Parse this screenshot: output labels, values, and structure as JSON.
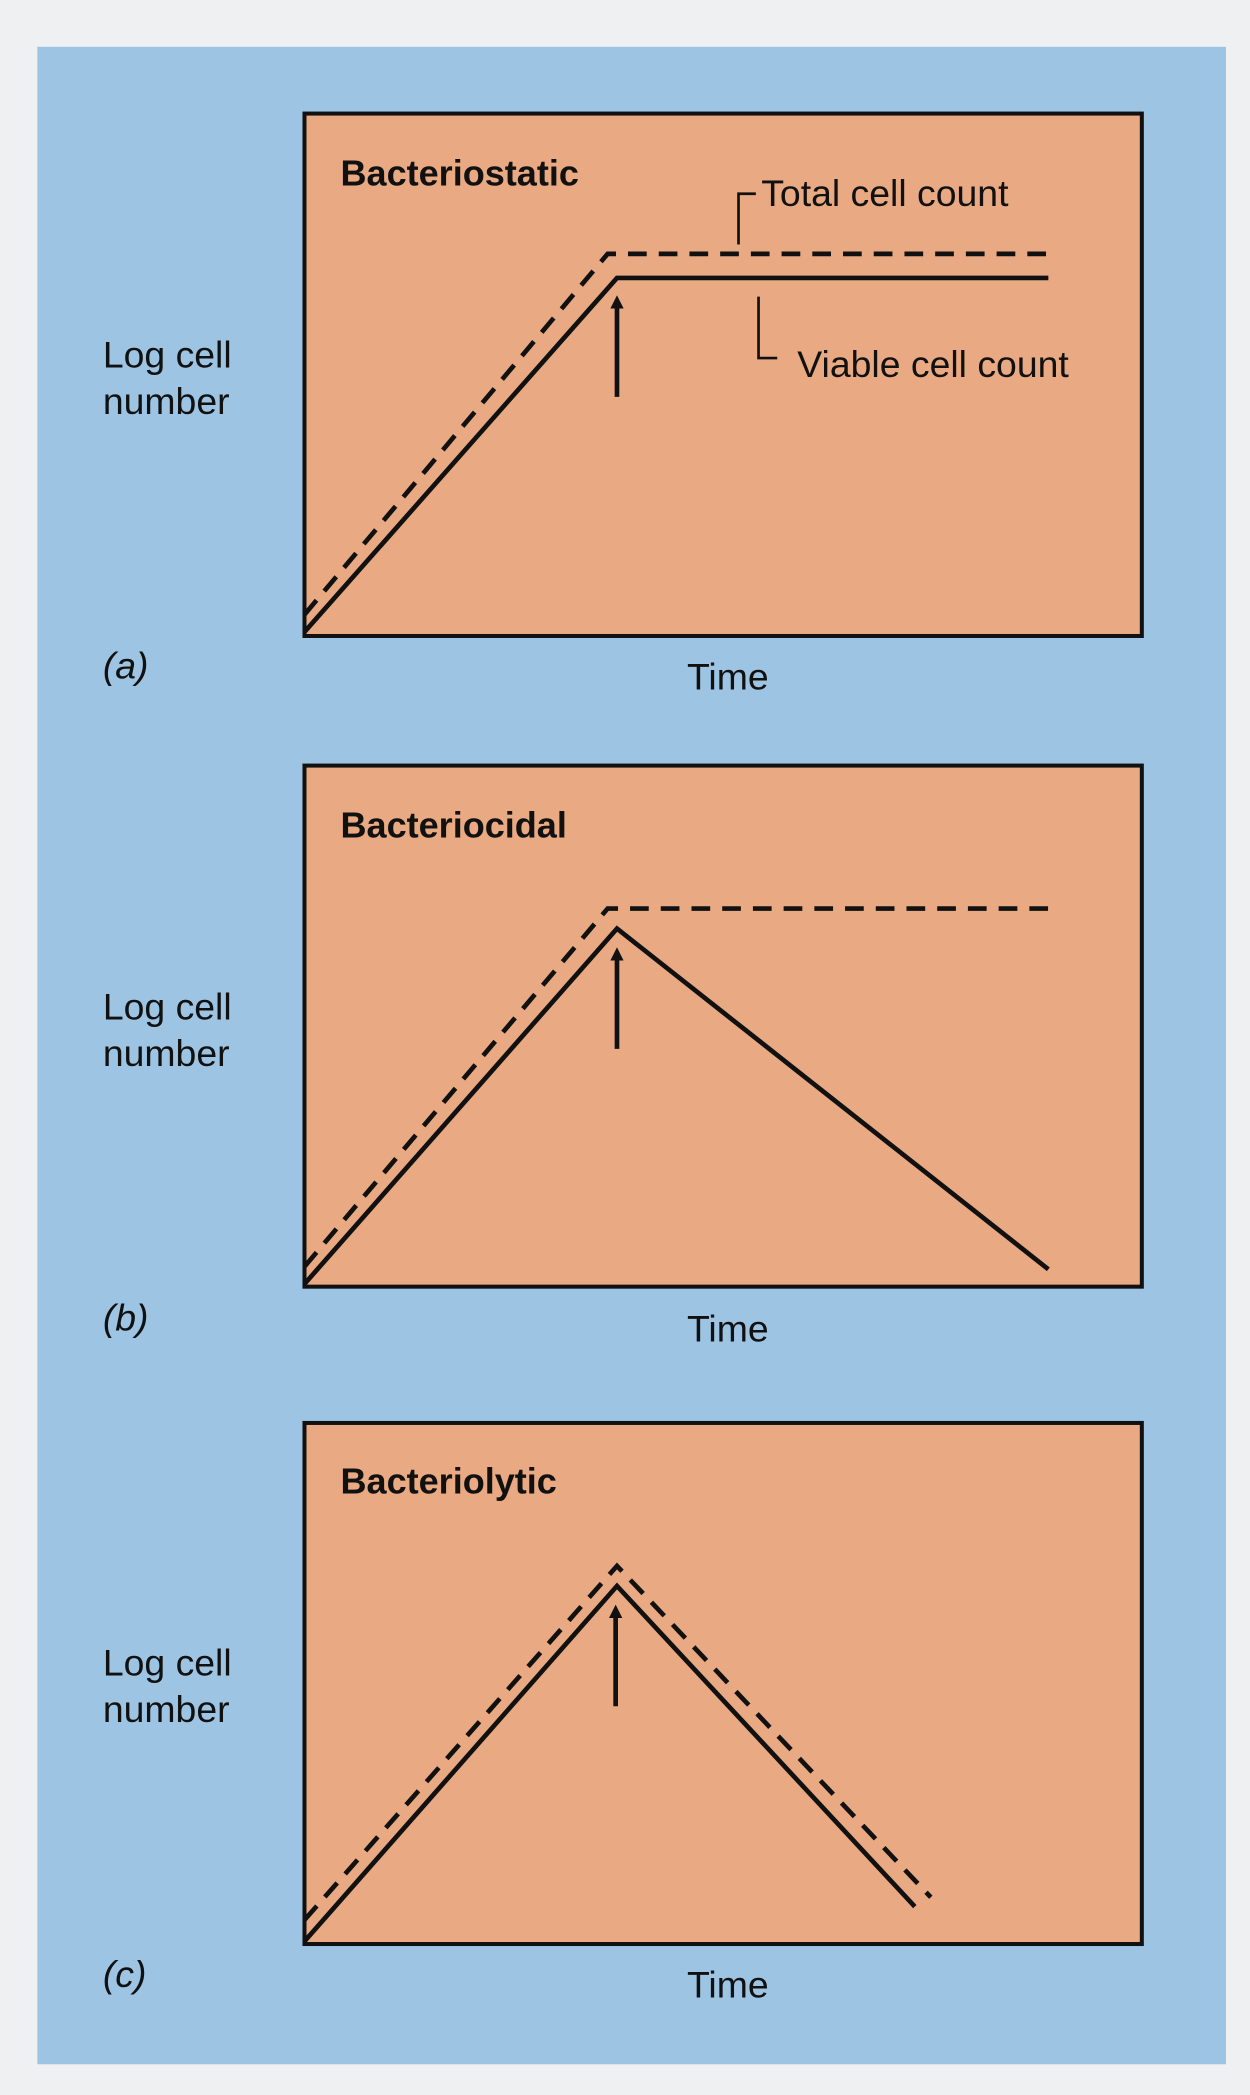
{
  "panels": [
    {
      "title": "Bacteriostatic",
      "y_label": [
        "Log cell",
        "number"
      ],
      "x_label": "Time",
      "tag": "(a)",
      "annotations": [
        "Total cell count",
        "Viable cell count"
      ]
    },
    {
      "title": "Bacteriocidal",
      "y_label": [
        "Log cell",
        "number"
      ],
      "x_label": "Time",
      "tag": "(b)"
    },
    {
      "title": "Bacteriolytic",
      "y_label": [
        "Log cell",
        "number"
      ],
      "x_label": "Time",
      "tag": "(c)"
    }
  ]
}
